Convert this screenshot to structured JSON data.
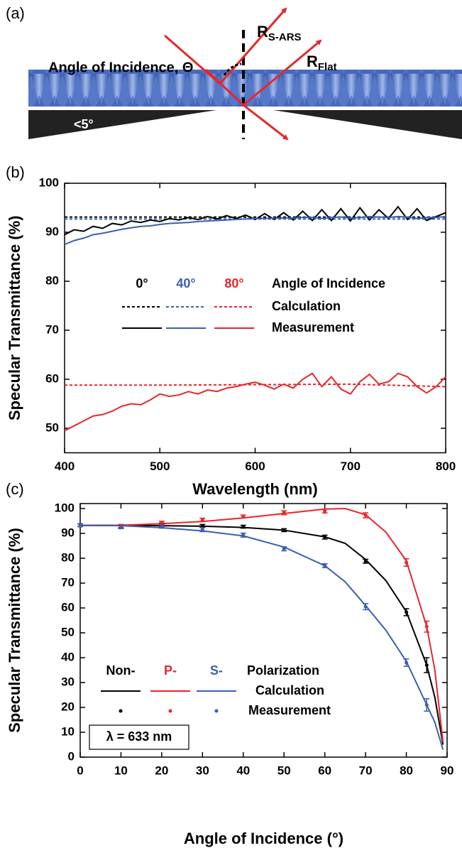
{
  "diagram": {
    "label": "(a)",
    "angle_label": "Angle of Incidence, Θ",
    "r_ars": {
      "main": "R",
      "sub": "S-ARS"
    },
    "r_flat": {
      "main": "R",
      "sub": "Flat"
    },
    "tilt": "<5°"
  },
  "chart_data": [
    {
      "type": "line",
      "label": "(b)",
      "xlabel": "Wavelength (nm)",
      "ylabel": "Specular Transmittance (%)",
      "xlim": [
        400,
        800
      ],
      "ylim": [
        45,
        100
      ],
      "xticks": [
        400,
        500,
        600,
        700,
        800
      ],
      "yticks": [
        50,
        60,
        70,
        80,
        90,
        100
      ],
      "legend": {
        "columns": [
          "0°",
          "40°",
          "80°"
        ],
        "column_title": "Angle of Incidence",
        "rows": [
          "Calculation",
          "Measurement"
        ]
      },
      "series": [
        {
          "color": "#000000",
          "style": "dashed",
          "x": [
            400,
            500,
            600,
            700,
            800
          ],
          "values": [
            93.1,
            93.1,
            93.1,
            93.1,
            93.1
          ]
        },
        {
          "color": "#3a5fb0",
          "style": "dashed",
          "x": [
            400,
            500,
            600,
            700,
            800
          ],
          "values": [
            92.7,
            92.7,
            92.7,
            92.7,
            92.7
          ]
        },
        {
          "color": "#e8262a",
          "style": "dashed",
          "x": [
            400,
            500,
            600,
            700,
            800
          ],
          "values": [
            58.8,
            58.8,
            58.9,
            59.0,
            58.5
          ]
        },
        {
          "color": "#000000",
          "style": "solid",
          "x": [
            400,
            410,
            420,
            430,
            440,
            450,
            460,
            470,
            480,
            490,
            500,
            510,
            520,
            530,
            540,
            550,
            560,
            570,
            580,
            590,
            600,
            610,
            620,
            630,
            640,
            650,
            660,
            670,
            680,
            690,
            700,
            710,
            720,
            730,
            740,
            750,
            760,
            770,
            780,
            790,
            800
          ],
          "values": [
            89.5,
            90.5,
            90.2,
            91.2,
            90.8,
            91.8,
            91.5,
            92.3,
            92.0,
            92.5,
            92.2,
            92.8,
            92.5,
            93.0,
            92.6,
            93.2,
            92.7,
            93.4,
            92.8,
            93.5,
            92.6,
            93.8,
            92.6,
            94.0,
            92.5,
            94.3,
            92.4,
            94.6,
            92.4,
            94.8,
            92.3,
            95.0,
            92.5,
            94.6,
            92.8,
            95.2,
            92.6,
            94.8,
            92.4,
            93.2,
            94.0
          ]
        },
        {
          "color": "#3a5fb0",
          "style": "solid",
          "x": [
            400,
            410,
            420,
            430,
            440,
            450,
            460,
            470,
            480,
            490,
            500,
            510,
            520,
            530,
            540,
            550,
            560,
            570,
            580,
            590,
            600,
            610,
            620,
            630,
            640,
            650,
            660,
            670,
            680,
            690,
            700,
            710,
            720,
            730,
            740,
            750,
            760,
            770,
            780,
            790,
            800
          ],
          "values": [
            87.5,
            88.3,
            88.8,
            89.5,
            89.8,
            90.2,
            90.6,
            90.9,
            91.2,
            91.3,
            91.6,
            91.8,
            91.9,
            92.0,
            92.2,
            92.3,
            92.4,
            92.5,
            92.6,
            92.7,
            92.8,
            92.8,
            92.9,
            92.9,
            92.9,
            93.0,
            93.0,
            92.8,
            93.0,
            93.1,
            92.9,
            93.0,
            93.2,
            93.1,
            93.0,
            93.2,
            93.1,
            92.8,
            93.0,
            93.0,
            93.2
          ]
        },
        {
          "color": "#e8262a",
          "style": "solid",
          "x": [
            400,
            410,
            420,
            430,
            440,
            450,
            460,
            470,
            480,
            490,
            500,
            510,
            520,
            530,
            540,
            550,
            560,
            570,
            580,
            590,
            600,
            610,
            620,
            630,
            640,
            650,
            660,
            670,
            680,
            690,
            700,
            710,
            720,
            730,
            740,
            750,
            760,
            770,
            780,
            790,
            800
          ],
          "values": [
            49.5,
            50.5,
            51.5,
            52.5,
            52.8,
            53.5,
            54.5,
            55.0,
            54.8,
            55.8,
            57.0,
            56.5,
            56.8,
            57.5,
            57.0,
            57.8,
            57.5,
            58.2,
            58.5,
            59.0,
            59.4,
            58.8,
            58.0,
            59.0,
            58.2,
            60.0,
            61.2,
            58.5,
            60.5,
            58.0,
            57.0,
            59.5,
            61.0,
            59.0,
            59.5,
            61.2,
            60.5,
            58.5,
            57.2,
            58.5,
            60.5
          ]
        }
      ]
    },
    {
      "type": "line",
      "label": "(c)",
      "xlabel": "Angle of Incidence (°)",
      "ylabel": "Specular Transmittance (%)",
      "xlim": [
        0,
        90
      ],
      "ylim": [
        0,
        102
      ],
      "xticks": [
        0,
        10,
        20,
        30,
        40,
        50,
        60,
        70,
        80,
        90
      ],
      "yticks": [
        0,
        10,
        20,
        30,
        40,
        50,
        60,
        70,
        80,
        90,
        100
      ],
      "annotation": "λ = 633 nm",
      "legend": {
        "columns": [
          "Non-",
          "P-",
          "S-"
        ],
        "column_title": "Polarization",
        "rows": [
          "Calculation",
          "Measurement"
        ]
      },
      "series": [
        {
          "color": "#000000",
          "style": "solid",
          "x": [
            0,
            10,
            20,
            30,
            40,
            50,
            60,
            65,
            70,
            75,
            80,
            85,
            87,
            89
          ],
          "values": [
            93.2,
            93.2,
            93.1,
            92.9,
            92.4,
            91.3,
            88.6,
            86.0,
            79.5,
            71.0,
            58.5,
            37.0,
            24.0,
            5.0
          ]
        },
        {
          "color": "#e8262a",
          "style": "solid",
          "x": [
            0,
            10,
            20,
            30,
            40,
            50,
            60,
            65,
            70,
            75,
            80,
            85,
            87,
            89
          ],
          "values": [
            93.2,
            93.3,
            93.9,
            94.8,
            96.2,
            98.0,
            99.8,
            100.0,
            97.5,
            90.5,
            79.0,
            52.5,
            35.0,
            6.0
          ]
        },
        {
          "color": "#3a5fb0",
          "style": "solid",
          "x": [
            0,
            10,
            20,
            30,
            40,
            50,
            60,
            65,
            70,
            75,
            80,
            85,
            87,
            89
          ],
          "values": [
            93.2,
            93.1,
            92.3,
            91.0,
            89.0,
            84.5,
            77.0,
            70.5,
            61.0,
            51.0,
            38.5,
            21.0,
            14.0,
            3.0
          ]
        },
        {
          "color": "#000000",
          "style": "points",
          "x": [
            0,
            10,
            20,
            30,
            40,
            50,
            60,
            70,
            80,
            85
          ],
          "values": [
            93.3,
            92.8,
            93.5,
            93.0,
            92.7,
            91.3,
            88.5,
            78.8,
            58.3,
            37.0
          ],
          "errors": [
            0.6,
            0.6,
            0.6,
            0.6,
            0.6,
            0.6,
            0.8,
            0.8,
            1.4,
            3.0
          ]
        },
        {
          "color": "#e8262a",
          "style": "points",
          "x": [
            0,
            10,
            20,
            30,
            40,
            50,
            60,
            70,
            80,
            85
          ],
          "values": [
            93.3,
            93.0,
            94.3,
            95.5,
            96.8,
            98.3,
            99.0,
            97.3,
            78.3,
            52.5
          ],
          "errors": [
            0.6,
            0.6,
            0.6,
            0.6,
            0.6,
            0.8,
            0.8,
            1.0,
            1.5,
            2.2
          ]
        },
        {
          "color": "#3a5fb0",
          "style": "points",
          "x": [
            0,
            10,
            20,
            30,
            40,
            50,
            60,
            70,
            80,
            85
          ],
          "values": [
            93.3,
            92.5,
            92.7,
            91.5,
            89.3,
            83.8,
            77.0,
            60.5,
            38.0,
            21.0
          ],
          "errors": [
            0.6,
            0.6,
            0.6,
            0.8,
            0.8,
            0.8,
            0.8,
            1.2,
            1.5,
            2.5
          ]
        }
      ]
    }
  ]
}
